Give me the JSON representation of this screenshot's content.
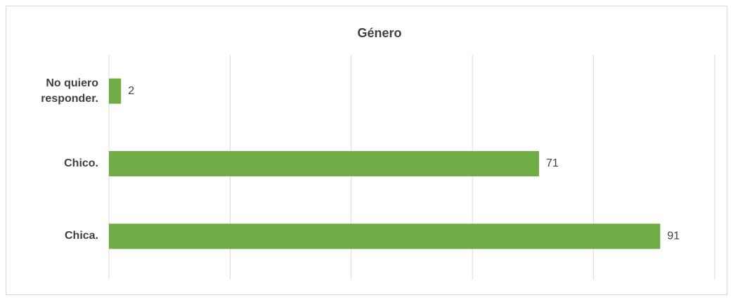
{
  "chart_data": {
    "type": "hbar",
    "title": "Género",
    "categories": [
      "No quiero responder.",
      "Chico.",
      "Chica."
    ],
    "values": [
      2,
      71,
      91
    ],
    "color": "#70ad47",
    "xlim": [
      0,
      100
    ],
    "xticks": [
      0,
      20,
      40,
      60,
      80,
      100
    ],
    "grid": true
  }
}
